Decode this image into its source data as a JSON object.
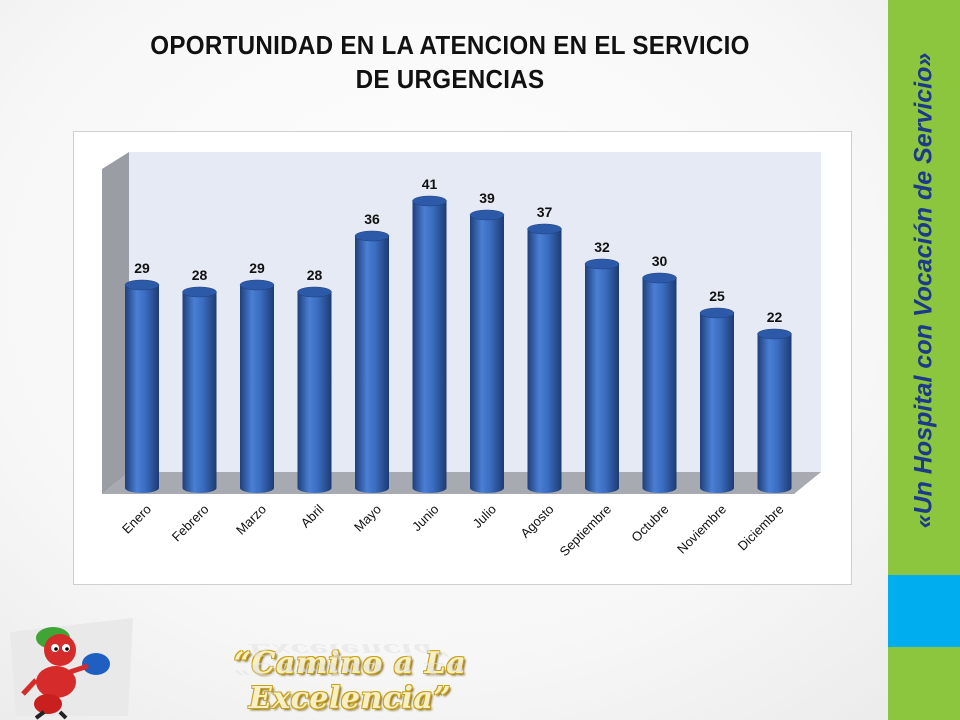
{
  "title_lines": [
    "OPORTUNIDAD EN LA ATENCION EN EL SERVICIO",
    "DE URGENCIAS"
  ],
  "side_banner_text": "«Un Hospital con Vocación de Servicio»",
  "slogan": "“Camino a La Excelencia”",
  "colors": {
    "bar": "#3a6cc0",
    "bar_dark": "#1f3f7a",
    "wall": "#e6eaf4",
    "banner_green": "#8cc63e",
    "banner_blue": "#00aeef",
    "banner_text": "#1b3a8a"
  },
  "icons": [
    "ant-mascot-logo-icon"
  ],
  "chart_data": {
    "type": "bar",
    "style": "3d-cylinder",
    "title": "",
    "xlabel": "",
    "ylabel": "",
    "ylim": [
      0,
      45
    ],
    "grid": false,
    "legend": "none",
    "categories": [
      "Enero",
      "Febrero",
      "Marzo",
      "Abril",
      "Mayo",
      "Junio",
      "Julio",
      "Agosto",
      "Septiembre",
      "Octubre",
      "Noviembre",
      "Diciembre"
    ],
    "values": [
      29,
      28,
      29,
      28,
      36,
      41,
      39,
      37,
      32,
      30,
      25,
      22
    ],
    "data_labels": [
      "29",
      "28",
      "29",
      "28",
      "36",
      "41",
      "39",
      "37",
      "32",
      "30",
      "25",
      "22"
    ]
  }
}
